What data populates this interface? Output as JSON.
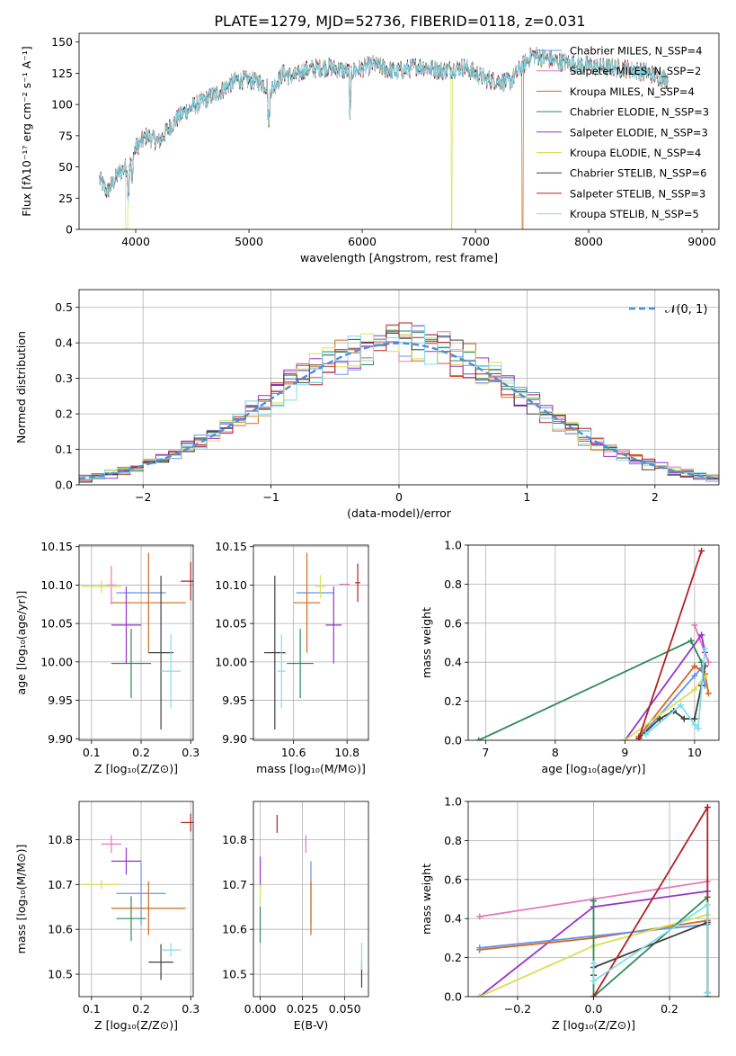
{
  "figure": {
    "title": "PLATE=1279, MJD=52736, FIBERID=0118, z=0.031"
  },
  "chart_data": [
    {
      "id": "spectrum",
      "type": "line",
      "xlabel": "wavelength [Angstrom, rest frame]",
      "ylabel": "Flux [fλ10⁻¹⁷ erg cm⁻² s⁻¹ A⁻¹]",
      "xlim": [
        3500,
        9150
      ],
      "ylim": [
        0,
        157
      ],
      "xticks": [
        4000,
        5000,
        6000,
        7000,
        8000,
        9000
      ],
      "xtick_labels": [
        "4000",
        "5000",
        "6000",
        "7000",
        "8000",
        "9000"
      ],
      "yticks": [
        0,
        25,
        50,
        75,
        100,
        125,
        150
      ],
      "ytick_labels": [
        "0",
        "25",
        "50",
        "75",
        "100",
        "125",
        "150"
      ],
      "grid": false,
      "legend_position": "top-right",
      "envelope": {
        "x": [
          3680,
          3750,
          3850,
          3950,
          4000,
          4100,
          4200,
          4300,
          4400,
          4500,
          4700,
          4900,
          5100,
          5200,
          5300,
          5400,
          5500,
          5700,
          5900,
          6100,
          6300,
          6500,
          6700,
          6900,
          7100,
          7300,
          7500,
          7700,
          7900,
          8100,
          8300,
          8500,
          8700
        ],
        "y": [
          40,
          30,
          45,
          52,
          65,
          75,
          70,
          82,
          92,
          98,
          108,
          120,
          118,
          112,
          125,
          122,
          128,
          130,
          126,
          132,
          126,
          131,
          127,
          130,
          120,
          118,
          140,
          135,
          132,
          130,
          129,
          126,
          120
        ]
      },
      "series": [
        {
          "name": "Chabrier MILES, N_SSP=4",
          "color": "#6495ed"
        },
        {
          "name": "Salpeter MILES, N_SSP=2",
          "color": "#e377c2"
        },
        {
          "name": "Kroupa MILES, N_SSP=4",
          "color": "#d2691e"
        },
        {
          "name": "Chabrier ELODIE, N_SSP=3",
          "color": "#2e8b57"
        },
        {
          "name": "Salpeter ELODIE, N_SSP=3",
          "color": "#9932cc"
        },
        {
          "name": "Kroupa ELODIE, N_SSP=4",
          "color": "#d4e157"
        },
        {
          "name": "Chabrier STELIB, N_SSP=6",
          "color": "#404040"
        },
        {
          "name": "Salpeter STELIB, N_SSP=3",
          "color": "#b22222"
        },
        {
          "name": "Kroupa STELIB, N_SSP=5",
          "color": "#80deea"
        }
      ]
    },
    {
      "id": "residuals",
      "type": "line",
      "xlabel": "(data-model)/error",
      "ylabel": "Normed distribution",
      "xlim": [
        -2.5,
        2.5
      ],
      "ylim": [
        0,
        0.55
      ],
      "xticks": [
        -2,
        -1,
        0,
        1,
        2
      ],
      "xtick_labels": [
        "−2",
        "−1",
        "0",
        "1",
        "2"
      ],
      "yticks": [
        0,
        0.1,
        0.2,
        0.3,
        0.4,
        0.5
      ],
      "ytick_labels": [
        "0.0",
        "0.1",
        "0.2",
        "0.3",
        "0.4",
        "0.5"
      ],
      "grid": true,
      "legend_position": "top-right",
      "gaussian_label": "𝒩(0, 1)",
      "gaussian_color": "#4a90d9",
      "histogram_bins": [
        -2.5,
        2.5,
        50
      ]
    },
    {
      "id": "age_vs_Z",
      "type": "scatter",
      "xlabel": "Z [log₁₀(Z/Z⊙)]",
      "ylabel": "age  [log₁₀(age/yr)]",
      "xlim": [
        0.075,
        0.305
      ],
      "ylim": [
        9.898,
        10.152
      ],
      "xticks": [
        0.1,
        0.2,
        0.3
      ],
      "xtick_labels": [
        "0.1",
        "0.2",
        "0.3"
      ],
      "yticks": [
        9.9,
        9.95,
        10.0,
        10.05,
        10.1,
        10.15
      ],
      "ytick_labels": [
        "9.90",
        "9.95",
        "10.00",
        "10.05",
        "10.10",
        "10.15"
      ],
      "grid": true,
      "points": [
        {
          "x": 0.2,
          "y": 10.09,
          "xerr": 0.05,
          "yerr": 0.0,
          "color": "#6495ed"
        },
        {
          "x": 0.14,
          "y": 10.1,
          "xerr": 0.01,
          "yerr": 0.025,
          "color": "#e377c2"
        },
        {
          "x": 0.215,
          "y": 10.077,
          "xerr": 0.075,
          "yerr": 0.065,
          "color": "#d2691e"
        },
        {
          "x": 0.18,
          "y": 9.998,
          "xerr": 0.04,
          "yerr": 0.045,
          "color": "#2e8b57"
        },
        {
          "x": 0.17,
          "y": 10.048,
          "xerr": 0.03,
          "yerr": 0.05,
          "color": "#9932cc"
        },
        {
          "x": 0.12,
          "y": 10.098,
          "xerr": 0.04,
          "yerr": 0.008,
          "color": "#d4e157"
        },
        {
          "x": 0.24,
          "y": 10.012,
          "xerr": 0.025,
          "yerr": 0.1,
          "color": "#404040"
        },
        {
          "x": 0.3,
          "y": 10.105,
          "xerr": 0.02,
          "yerr": 0.025,
          "color": "#b22222"
        },
        {
          "x": 0.26,
          "y": 9.988,
          "xerr": 0.02,
          "yerr": 0.048,
          "color": "#80deea"
        }
      ]
    },
    {
      "id": "age_vs_mass",
      "type": "scatter",
      "xlabel": "mass [log₁₀(M/M⊙)]",
      "ylabel": "",
      "xlim": [
        10.45,
        10.88
      ],
      "ylim": [
        9.898,
        10.152
      ],
      "xticks": [
        10.6,
        10.8
      ],
      "xtick_labels": [
        "10.6",
        "10.8"
      ],
      "yticks": [
        9.9,
        9.95,
        10.0,
        10.05,
        10.1,
        10.15
      ],
      "ytick_labels": [
        "9.90",
        "9.95",
        "10.00",
        "10.05",
        "10.10",
        "10.15"
      ],
      "grid": true,
      "points": [
        {
          "x": 10.68,
          "y": 10.09,
          "xerr": 0.07,
          "yerr": 0.0,
          "color": "#6495ed"
        },
        {
          "x": 10.79,
          "y": 10.101,
          "xerr": 0.02,
          "yerr": 0.0,
          "color": "#e377c2"
        },
        {
          "x": 10.65,
          "y": 10.077,
          "xerr": 0.05,
          "yerr": 0.065,
          "color": "#d2691e"
        },
        {
          "x": 10.625,
          "y": 9.998,
          "xerr": 0.05,
          "yerr": 0.045,
          "color": "#2e8b57"
        },
        {
          "x": 10.75,
          "y": 10.048,
          "xerr": 0.03,
          "yerr": 0.05,
          "color": "#9932cc"
        },
        {
          "x": 10.7,
          "y": 10.098,
          "xerr": 0.02,
          "yerr": 0.015,
          "color": "#d4e157"
        },
        {
          "x": 10.53,
          "y": 10.012,
          "xerr": 0.04,
          "yerr": 0.1,
          "color": "#404040"
        },
        {
          "x": 10.84,
          "y": 10.103,
          "xerr": 0.01,
          "yerr": 0.025,
          "color": "#b22222"
        },
        {
          "x": 10.555,
          "y": 9.988,
          "xerr": 0.015,
          "yerr": 0.048,
          "color": "#80deea"
        }
      ]
    },
    {
      "id": "weight_vs_age",
      "type": "line",
      "xlabel": "age  [log₁₀(age/yr)]",
      "ylabel": "mass weight",
      "xlim": [
        6.75,
        10.35
      ],
      "ylim": [
        0,
        1.0
      ],
      "xticks": [
        7,
        8,
        9,
        10
      ],
      "xtick_labels": [
        "7",
        "8",
        "9",
        "10"
      ],
      "yticks": [
        0,
        0.2,
        0.4,
        0.6,
        0.8,
        1.0
      ],
      "ytick_labels": [
        "0.0",
        "0.2",
        "0.4",
        "0.6",
        "0.8",
        "1.0"
      ],
      "grid": true,
      "series": [
        {
          "color": "#2e8b57",
          "x": [
            6.9,
            9.95,
            10.1
          ],
          "y": [
            0.0,
            0.51,
            0.4
          ]
        },
        {
          "color": "#6495ed",
          "x": [
            9.2,
            10.0,
            10.1,
            10.15
          ],
          "y": [
            0.01,
            0.33,
            0.37,
            0.28
          ]
        },
        {
          "color": "#d2691e",
          "x": [
            9.2,
            10.0,
            10.15,
            10.2
          ],
          "y": [
            0.02,
            0.38,
            0.34,
            0.24
          ]
        },
        {
          "color": "#e377c2",
          "x": [
            10.0,
            10.2
          ],
          "y": [
            0.59,
            0.4
          ]
        },
        {
          "color": "#9932cc",
          "x": [
            9.0,
            10.1,
            10.15
          ],
          "y": [
            0.0,
            0.54,
            0.45
          ]
        },
        {
          "color": "#d4e157",
          "x": [
            9.0,
            10.0,
            10.15
          ],
          "y": [
            0.0,
            0.26,
            0.33
          ]
        },
        {
          "color": "#404040",
          "x": [
            9.2,
            9.5,
            9.7,
            9.85,
            10.0,
            10.1,
            10.15
          ],
          "y": [
            0.01,
            0.11,
            0.15,
            0.11,
            0.11,
            0.28,
            0.38
          ]
        },
        {
          "color": "#b22222",
          "x": [
            9.2,
            10.1
          ],
          "y": [
            0.01,
            0.97
          ]
        },
        {
          "color": "#80deea",
          "x": [
            9.3,
            9.8,
            10.0,
            10.05,
            10.15
          ],
          "y": [
            0.03,
            0.18,
            0.08,
            0.06,
            0.47
          ]
        }
      ]
    },
    {
      "id": "mass_vs_Z",
      "type": "scatter",
      "xlabel": "Z [log₁₀(Z/Z⊙)]",
      "ylabel": "mass [log₁₀(M/M⊙)]",
      "xlim": [
        0.075,
        0.305
      ],
      "ylim": [
        10.45,
        10.885
      ],
      "xticks": [
        0.1,
        0.2,
        0.3
      ],
      "xtick_labels": [
        "0.1",
        "0.2",
        "0.3"
      ],
      "yticks": [
        10.5,
        10.6,
        10.7,
        10.8
      ],
      "ytick_labels": [
        "10.5",
        "10.6",
        "10.7",
        "10.8"
      ],
      "grid": true,
      "points": [
        {
          "x": 0.2,
          "y": 10.68,
          "xerr": 0.05,
          "yerr": 0.07,
          "color": "#6495ed"
        },
        {
          "x": 0.14,
          "y": 10.79,
          "xerr": 0.02,
          "yerr": 0.02,
          "color": "#e377c2"
        },
        {
          "x": 0.215,
          "y": 10.647,
          "xerr": 0.075,
          "yerr": 0.06,
          "color": "#d2691e"
        },
        {
          "x": 0.18,
          "y": 10.624,
          "xerr": 0.03,
          "yerr": 0.05,
          "color": "#2e8b57"
        },
        {
          "x": 0.17,
          "y": 10.752,
          "xerr": 0.03,
          "yerr": 0.03,
          "color": "#9932cc"
        },
        {
          "x": 0.12,
          "y": 10.7,
          "xerr": 0.04,
          "yerr": 0.01,
          "color": "#d4e157"
        },
        {
          "x": 0.24,
          "y": 10.527,
          "xerr": 0.025,
          "yerr": 0.04,
          "color": "#404040"
        },
        {
          "x": 0.3,
          "y": 10.838,
          "xerr": 0.02,
          "yerr": 0.02,
          "color": "#b22222"
        },
        {
          "x": 0.26,
          "y": 10.554,
          "xerr": 0.02,
          "yerr": 0.015,
          "color": "#80deea"
        }
      ]
    },
    {
      "id": "mass_vs_ebv",
      "type": "scatter",
      "xlabel": "E(B-V)",
      "ylabel": "",
      "xlim": [
        -0.004,
        0.064
      ],
      "ylim": [
        10.45,
        10.885
      ],
      "xticks": [
        0.0,
        0.025,
        0.05
      ],
      "xtick_labels": [
        "0.000",
        "0.025",
        "0.050"
      ],
      "yticks": [
        10.5,
        10.6,
        10.7,
        10.8
      ],
      "ytick_labels": [
        "10.5",
        "10.6",
        "10.7",
        "10.8"
      ],
      "grid": true,
      "points": [
        {
          "x": 0.03,
          "y": 10.682,
          "xerr": 0.0,
          "yerr": 0.07,
          "color": "#6495ed"
        },
        {
          "x": 0.027,
          "y": 10.79,
          "xerr": 0.0,
          "yerr": 0.02,
          "color": "#e377c2"
        },
        {
          "x": 0.03,
          "y": 10.647,
          "xerr": 0.0,
          "yerr": 0.06,
          "color": "#d2691e"
        },
        {
          "x": 0.0,
          "y": 10.61,
          "xerr": 0.0,
          "yerr": 0.04,
          "color": "#2e8b57"
        },
        {
          "x": 0.0,
          "y": 10.727,
          "xerr": 0.0,
          "yerr": 0.035,
          "color": "#9932cc"
        },
        {
          "x": 0.0,
          "y": 10.68,
          "xerr": 0.0,
          "yerr": 0.02,
          "color": "#d4e157"
        },
        {
          "x": 0.06,
          "y": 10.5,
          "xerr": 0.0,
          "yerr": 0.03,
          "color": "#404040"
        },
        {
          "x": 0.01,
          "y": 10.835,
          "xerr": 0.0,
          "yerr": 0.02,
          "color": "#b22222"
        },
        {
          "x": 0.06,
          "y": 10.54,
          "xerr": 0.0,
          "yerr": 0.03,
          "color": "#80deea"
        }
      ]
    },
    {
      "id": "weight_vs_Z",
      "type": "line",
      "xlabel": "Z [log₁₀(Z/Z⊙)]",
      "ylabel": "mass weight",
      "xlim": [
        -0.33,
        0.33
      ],
      "ylim": [
        0,
        1.0
      ],
      "xticks": [
        -0.2,
        0.0,
        0.2
      ],
      "xtick_labels": [
        "−0.2",
        "0.0",
        "0.2"
      ],
      "yticks": [
        0,
        0.2,
        0.4,
        0.6,
        0.8,
        1.0
      ],
      "ytick_labels": [
        "0.0",
        "0.2",
        "0.4",
        "0.6",
        "0.8",
        "1.0"
      ],
      "grid": true,
      "series": [
        {
          "color": "#e377c2",
          "x": [
            -0.3,
            0.0,
            0.3
          ],
          "y": [
            0.41,
            0.5,
            0.59
          ]
        },
        {
          "color": "#9932cc",
          "x": [
            -0.3,
            0.0,
            0.3
          ],
          "y": [
            0.0,
            0.46,
            0.54
          ]
        },
        {
          "color": "#d2691e",
          "x": [
            -0.3,
            0.0,
            0.3
          ],
          "y": [
            0.24,
            0.3,
            0.39
          ]
        },
        {
          "color": "#6495ed",
          "x": [
            -0.3,
            0.0,
            0.3
          ],
          "y": [
            0.25,
            0.31,
            0.37
          ]
        },
        {
          "color": "#d4e157",
          "x": [
            -0.3,
            0.0,
            0.3
          ],
          "y": [
            0.0,
            0.26,
            0.42
          ]
        },
        {
          "color": "#2e8b57",
          "x": [
            0.0,
            0.0,
            0.3,
            0.3
          ],
          "y": [
            0.49,
            0.0,
            0.51,
            0.0
          ]
        },
        {
          "color": "#404040",
          "x": [
            0.0,
            0.0,
            0.3,
            0.3
          ],
          "y": [
            0.11,
            0.15,
            0.38,
            0.02
          ]
        },
        {
          "color": "#b22222",
          "x": [
            0.0,
            0.3,
            0.3
          ],
          "y": [
            0.0,
            0.97,
            0.02
          ]
        },
        {
          "color": "#80deea",
          "x": [
            0.0,
            0.0,
            0.3,
            0.3
          ],
          "y": [
            0.17,
            0.08,
            0.47,
            0.02
          ]
        }
      ]
    }
  ]
}
